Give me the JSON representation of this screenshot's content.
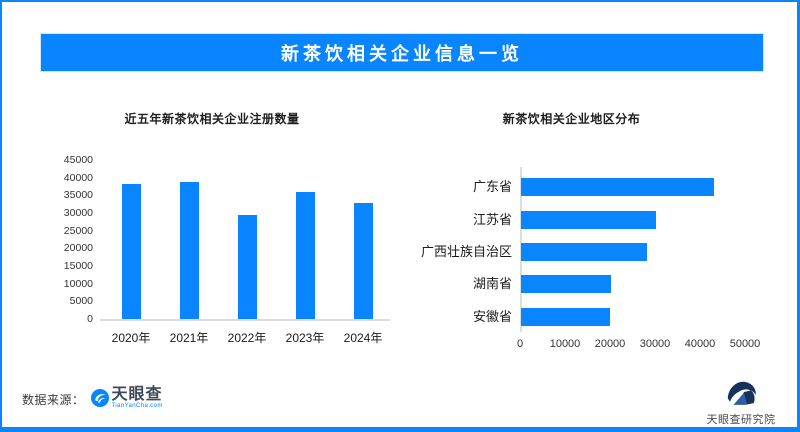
{
  "header": {
    "title": "新茶饮相关企业信息一览"
  },
  "colors": {
    "accent": "#0885FF",
    "axis_line": "#DCDCDC",
    "title_text": "#1F1F1F",
    "institute_navy": "#16325C",
    "institute_blue": "#2D5CA8"
  },
  "chart_data": [
    {
      "type": "bar",
      "title": "近五年新茶饮相关企业注册数量",
      "categories": [
        "2020年",
        "2021年",
        "2022年",
        "2023年",
        "2024年"
      ],
      "values": [
        38300,
        38900,
        29300,
        35900,
        32900
      ],
      "xlabel": "",
      "ylabel": "",
      "ylim": [
        0,
        45000
      ],
      "ytick_step": 5000,
      "grid": false,
      "legend": "none",
      "bar_color": "#0885FF"
    },
    {
      "type": "bar-horizontal",
      "title": "新茶饮相关企业地区分布",
      "categories": [
        "广东省",
        "江苏省",
        "广西壮族自治区",
        "湖南省",
        "安徽省"
      ],
      "values": [
        42900,
        30000,
        28000,
        20000,
        19800
      ],
      "xlabel": "",
      "ylabel": "",
      "xlim": [
        0,
        50000
      ],
      "xtick_step": 10000,
      "grid": false,
      "legend": "none",
      "bar_color": "#0885FF"
    }
  ],
  "footer": {
    "source_label": "数据来源：",
    "tianyancha_name": "天眼查",
    "tianyancha_domain": "TianYanCha.com",
    "institute_name": "天眼查研究院"
  }
}
